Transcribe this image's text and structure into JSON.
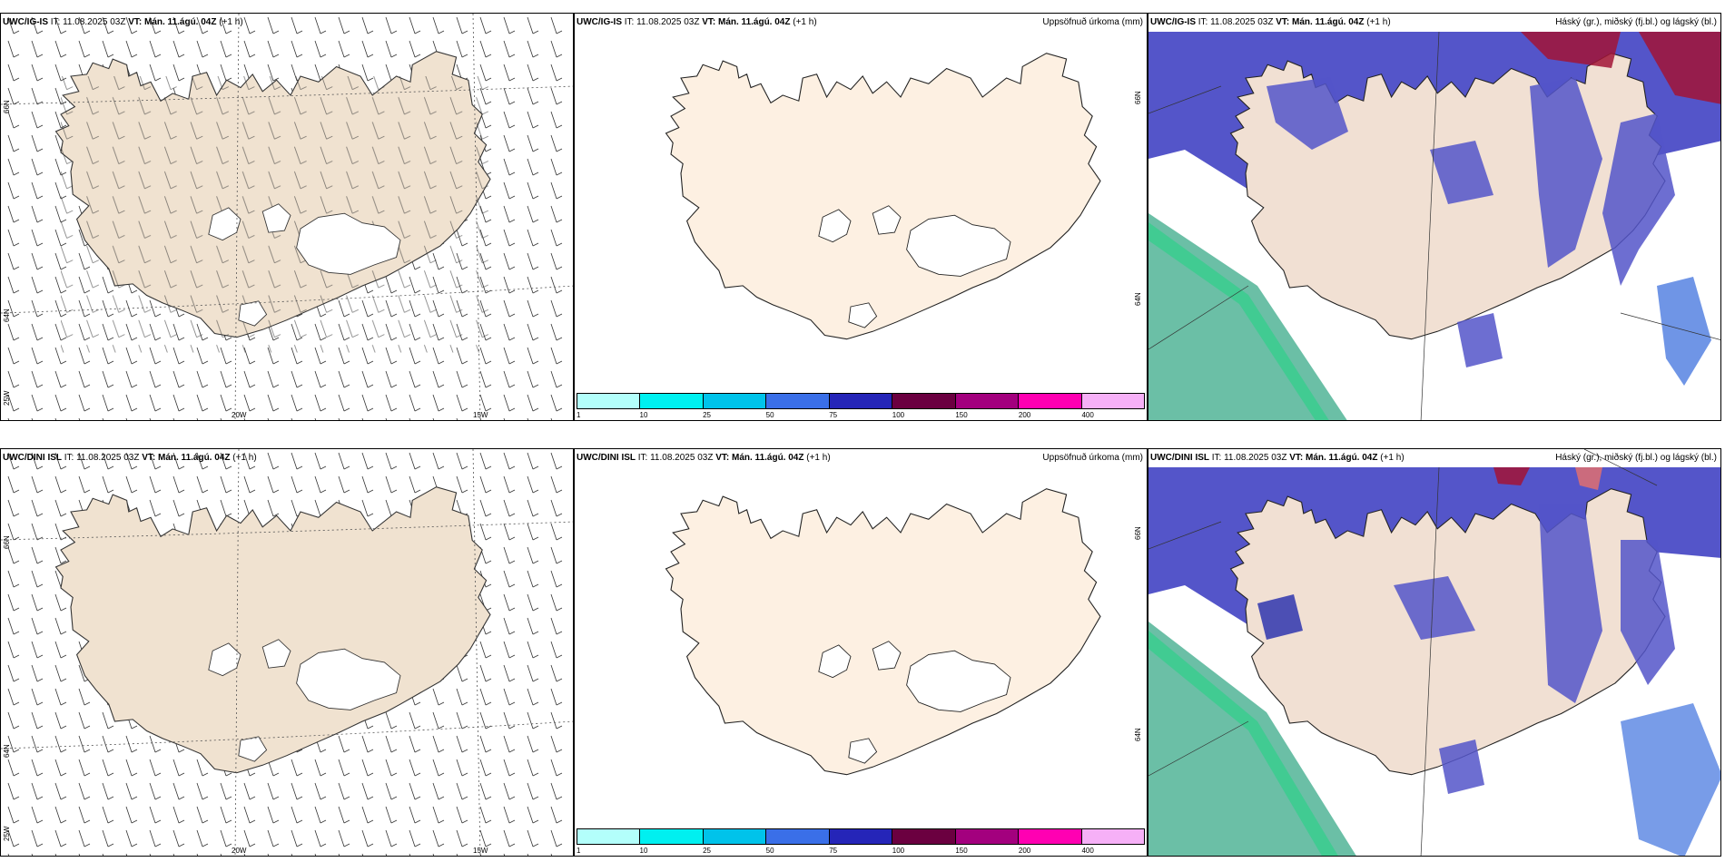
{
  "rows": [
    {
      "model": "UWC/IG-IS",
      "it": "IT: 11.08.2025 03Z",
      "vt": "VT: Mán. 11.ágú. 04Z",
      "lead": "(+1 h)"
    },
    {
      "model": "UWC/DINI ISL",
      "it": "IT: 11.08.2025 03Z",
      "vt": "VT: Mán. 11.ágú. 04Z",
      "lead": "(+1 h)"
    }
  ],
  "titles": {
    "precip": "Uppsöfnuð úrkoma (mm)",
    "cloud": "Háský (gr.), miðský (fj.bl.) og lágský (bl.)"
  },
  "axes": {
    "lat66": "66N",
    "lat64": "64N",
    "lon25": "25W",
    "lon20": "20W",
    "lon15": "15W"
  },
  "colorbar": {
    "ticks": [
      "1",
      "10",
      "25",
      "50",
      "75",
      "100",
      "150",
      "200",
      "400"
    ],
    "colors": [
      "#b3fffb",
      "#00f0f0",
      "#00c3ea",
      "#3a6fe8",
      "#2525b8",
      "#6b0040",
      "#a3007e",
      "#ff00b2",
      "#f6b0f7"
    ]
  },
  "colors": {
    "land_wind": "#f0e2d0",
    "land_precip": "#fdf0e2",
    "land_cloud": "#f1e0d3",
    "low_cloud": "#5455c9",
    "mid_cloud": "#4b7be0",
    "high_cloud": "#a21436",
    "sea_green": "#6bbfa6"
  }
}
